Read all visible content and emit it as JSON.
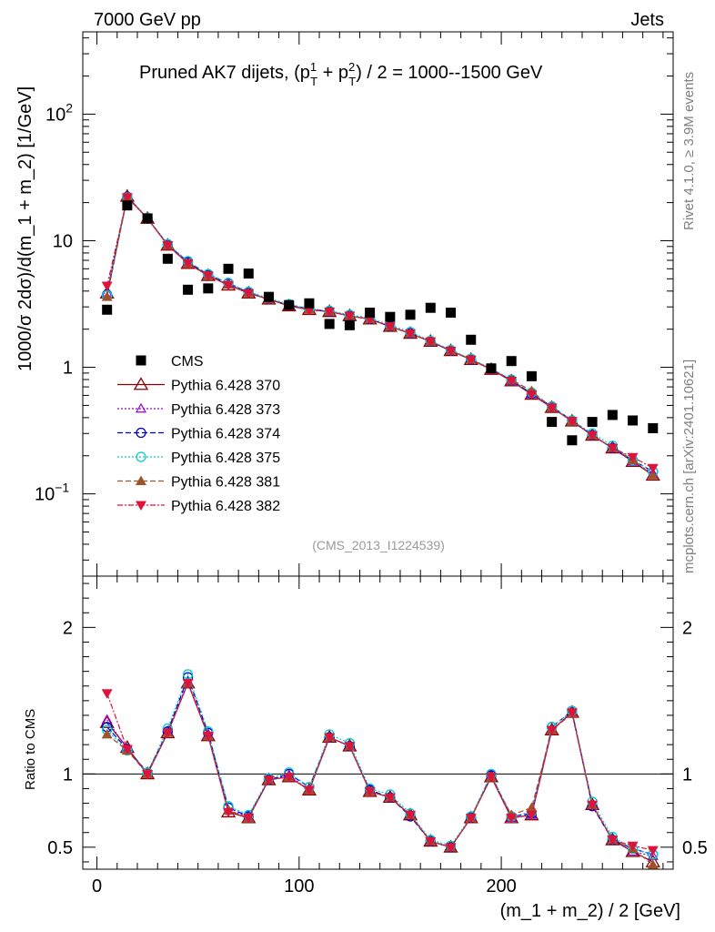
{
  "header": {
    "energy": "7000 GeV pp",
    "process": "Jets"
  },
  "side_text": {
    "rivet": "Rivet 4.1.0, ≥ 3.9M events",
    "mcplots": "mcplots.cern.ch [arXiv:2401.10621]"
  },
  "title": {
    "main": "Pruned AK7 dijets, (p",
    "sup1": "1",
    "sub1": "T",
    "plus": " + p",
    "sup2": "2",
    "sub2": "T",
    "rest": ") / 2 = 1000--1500 GeV"
  },
  "analysis_id": "(CMS_2013_I1224539)",
  "axes": {
    "ylabel_top": "1000/σ   2dσ)/d(m_1 + m_2) [1/GeV]",
    "ylabel_bottom": "Ratio to CMS",
    "xlabel": "(m_1 + m_2) / 2 [GeV]",
    "xlim": [
      -7,
      285
    ],
    "ylim_top_log10": [
      -1.65,
      2.65
    ],
    "ylim_bottom": [
      0.35,
      2.35
    ]
  },
  "legend": [
    {
      "key": "cms",
      "label": "CMS"
    },
    {
      "key": "s370",
      "label": "Pythia 6.428 370"
    },
    {
      "key": "s373",
      "label": "Pythia 6.428 373"
    },
    {
      "key": "s374",
      "label": "Pythia 6.428 374"
    },
    {
      "key": "s375",
      "label": "Pythia 6.428 375"
    },
    {
      "key": "s381",
      "label": "Pythia 6.428 381"
    },
    {
      "key": "s382",
      "label": "Pythia 6.428 382"
    }
  ],
  "chart_data": {
    "type": "scatter",
    "x": [
      5,
      15,
      25,
      35,
      45,
      55,
      65,
      75,
      85,
      95,
      105,
      115,
      125,
      135,
      145,
      155,
      165,
      175,
      185,
      195,
      205,
      215,
      225,
      235,
      245,
      255,
      265,
      275
    ],
    "cms": {
      "name": "CMS",
      "color": "#000000",
      "values": [
        2.85,
        19.0,
        15.0,
        7.2,
        4.1,
        4.2,
        6.0,
        5.5,
        3.6,
        3.1,
        3.2,
        2.2,
        2.15,
        2.7,
        2.5,
        2.6,
        2.95,
        2.7,
        1.65,
        0.98,
        1.12,
        0.85,
        0.37,
        0.265,
        0.37,
        0.42,
        0.38,
        0.33
      ]
    },
    "series": [
      {
        "key": "s370",
        "name": "Pythia 6.428 370",
        "color": "#8b0000",
        "marker": "open-triangle",
        "dash": "",
        "values": [
          3.85,
          22.4,
          15.0,
          9.2,
          6.6,
          5.3,
          4.45,
          3.85,
          3.45,
          3.05,
          2.85,
          2.75,
          2.55,
          2.4,
          2.1,
          1.85,
          1.6,
          1.35,
          1.15,
          0.96,
          0.78,
          0.61,
          0.48,
          0.375,
          0.29,
          0.23,
          0.18,
          0.14
        ],
        "ratio": [
          1.35,
          1.18,
          1.0,
          1.28,
          1.62,
          1.26,
          0.74,
          0.7,
          0.96,
          0.98,
          0.89,
          1.25,
          1.19,
          0.88,
          0.84,
          0.72,
          0.54,
          0.5,
          0.7,
          0.98,
          0.7,
          0.72,
          1.3,
          1.42,
          0.79,
          0.55,
          0.47,
          0.4
        ]
      },
      {
        "key": "s373",
        "name": "Pythia 6.428 373",
        "color": "#9400d3",
        "marker": "open-triangle-small",
        "dash": "2,2",
        "values": [
          3.9,
          22.0,
          15.0,
          9.3,
          6.7,
          5.35,
          4.5,
          3.9,
          3.45,
          3.1,
          2.85,
          2.75,
          2.55,
          2.4,
          2.1,
          1.85,
          1.6,
          1.35,
          1.15,
          0.96,
          0.78,
          0.61,
          0.48,
          0.375,
          0.29,
          0.23,
          0.18,
          0.145
        ],
        "ratio": [
          1.37,
          1.17,
          1.0,
          1.29,
          1.63,
          1.27,
          0.75,
          0.71,
          0.96,
          0.99,
          0.89,
          1.25,
          1.19,
          0.88,
          0.84,
          0.72,
          0.54,
          0.5,
          0.7,
          0.98,
          0.7,
          0.72,
          1.3,
          1.42,
          0.79,
          0.55,
          0.47,
          0.44
        ]
      },
      {
        "key": "s374",
        "name": "Pythia 6.428 374",
        "color": "#0000cd",
        "marker": "open-circle",
        "dash": "6,3",
        "values": [
          3.75,
          22.2,
          15.1,
          9.3,
          6.8,
          5.4,
          4.6,
          3.9,
          3.45,
          3.1,
          2.9,
          2.75,
          2.55,
          2.4,
          2.1,
          1.85,
          1.6,
          1.35,
          1.15,
          0.97,
          0.79,
          0.62,
          0.49,
          0.38,
          0.29,
          0.23,
          0.185,
          0.15
        ],
        "ratio": [
          1.32,
          1.17,
          1.01,
          1.29,
          1.66,
          1.28,
          0.77,
          0.71,
          0.96,
          1.0,
          0.91,
          1.25,
          1.19,
          0.89,
          0.84,
          0.71,
          0.54,
          0.5,
          0.7,
          0.99,
          0.71,
          0.73,
          1.32,
          1.43,
          0.78,
          0.55,
          0.49,
          0.45
        ]
      },
      {
        "key": "s375",
        "name": "Pythia 6.428 375",
        "color": "#00ced1",
        "marker": "open-circle",
        "dash": "2,2",
        "values": [
          3.7,
          22.0,
          15.2,
          9.4,
          6.9,
          5.45,
          4.65,
          3.95,
          3.5,
          3.15,
          2.9,
          2.8,
          2.6,
          2.45,
          2.15,
          1.9,
          1.62,
          1.37,
          1.17,
          0.98,
          0.8,
          0.63,
          0.49,
          0.38,
          0.3,
          0.24,
          0.185,
          0.15
        ],
        "ratio": [
          1.3,
          1.16,
          1.01,
          1.31,
          1.68,
          1.29,
          0.78,
          0.72,
          0.97,
          1.01,
          0.91,
          1.27,
          1.21,
          0.9,
          0.86,
          0.73,
          0.55,
          0.51,
          0.71,
          1.0,
          0.71,
          0.74,
          1.32,
          1.43,
          0.81,
          0.57,
          0.49,
          0.45
        ]
      },
      {
        "key": "s381",
        "name": "Pythia 6.428 381",
        "color": "#a0522d",
        "marker": "filled-triangle",
        "dash": "6,3",
        "values": [
          3.6,
          22.0,
          15.0,
          9.2,
          6.6,
          5.3,
          4.5,
          3.85,
          3.45,
          3.05,
          2.85,
          2.75,
          2.55,
          2.4,
          2.1,
          1.85,
          1.6,
          1.35,
          1.15,
          0.96,
          0.8,
          0.65,
          0.48,
          0.375,
          0.29,
          0.23,
          0.185,
          0.14
        ],
        "ratio": [
          1.27,
          1.16,
          1.0,
          1.28,
          1.62,
          1.26,
          0.75,
          0.7,
          0.96,
          0.98,
          0.89,
          1.25,
          1.19,
          0.88,
          0.84,
          0.72,
          0.54,
          0.5,
          0.7,
          0.98,
          0.72,
          0.77,
          1.3,
          1.41,
          0.79,
          0.55,
          0.49,
          0.38
        ]
      },
      {
        "key": "s382",
        "name": "Pythia 6.428 382",
        "color": "#dc143c",
        "marker": "filled-triangle-down",
        "dash": "6,2,2,2",
        "values": [
          4.4,
          22.0,
          15.0,
          9.2,
          6.6,
          5.3,
          4.45,
          3.85,
          3.45,
          3.05,
          2.85,
          2.75,
          2.55,
          2.4,
          2.1,
          1.85,
          1.6,
          1.35,
          1.15,
          0.96,
          0.78,
          0.61,
          0.48,
          0.375,
          0.29,
          0.23,
          0.195,
          0.16
        ],
        "ratio": [
          1.55,
          1.17,
          1.0,
          1.28,
          1.62,
          1.26,
          0.74,
          0.7,
          0.96,
          0.98,
          0.89,
          1.25,
          1.19,
          0.88,
          0.84,
          0.72,
          0.54,
          0.5,
          0.7,
          0.98,
          0.7,
          0.72,
          1.3,
          1.42,
          0.79,
          0.55,
          0.51,
          0.48
        ]
      }
    ],
    "ticks_top": [
      {
        "v": 0.1,
        "label": "10",
        "sup": "−1"
      },
      {
        "v": 1,
        "label": "1",
        "sup": ""
      },
      {
        "v": 10,
        "label": "10",
        "sup": ""
      },
      {
        "v": 100,
        "label": "10",
        "sup": "2"
      }
    ],
    "ticks_bottom": [
      {
        "v": 0.5,
        "label": "0.5"
      },
      {
        "v": 1,
        "label": "1"
      },
      {
        "v": 2,
        "label": "2"
      }
    ],
    "ticks_x": [
      {
        "v": 0,
        "label": "0"
      },
      {
        "v": 100,
        "label": "100"
      },
      {
        "v": 200,
        "label": "200"
      }
    ]
  }
}
